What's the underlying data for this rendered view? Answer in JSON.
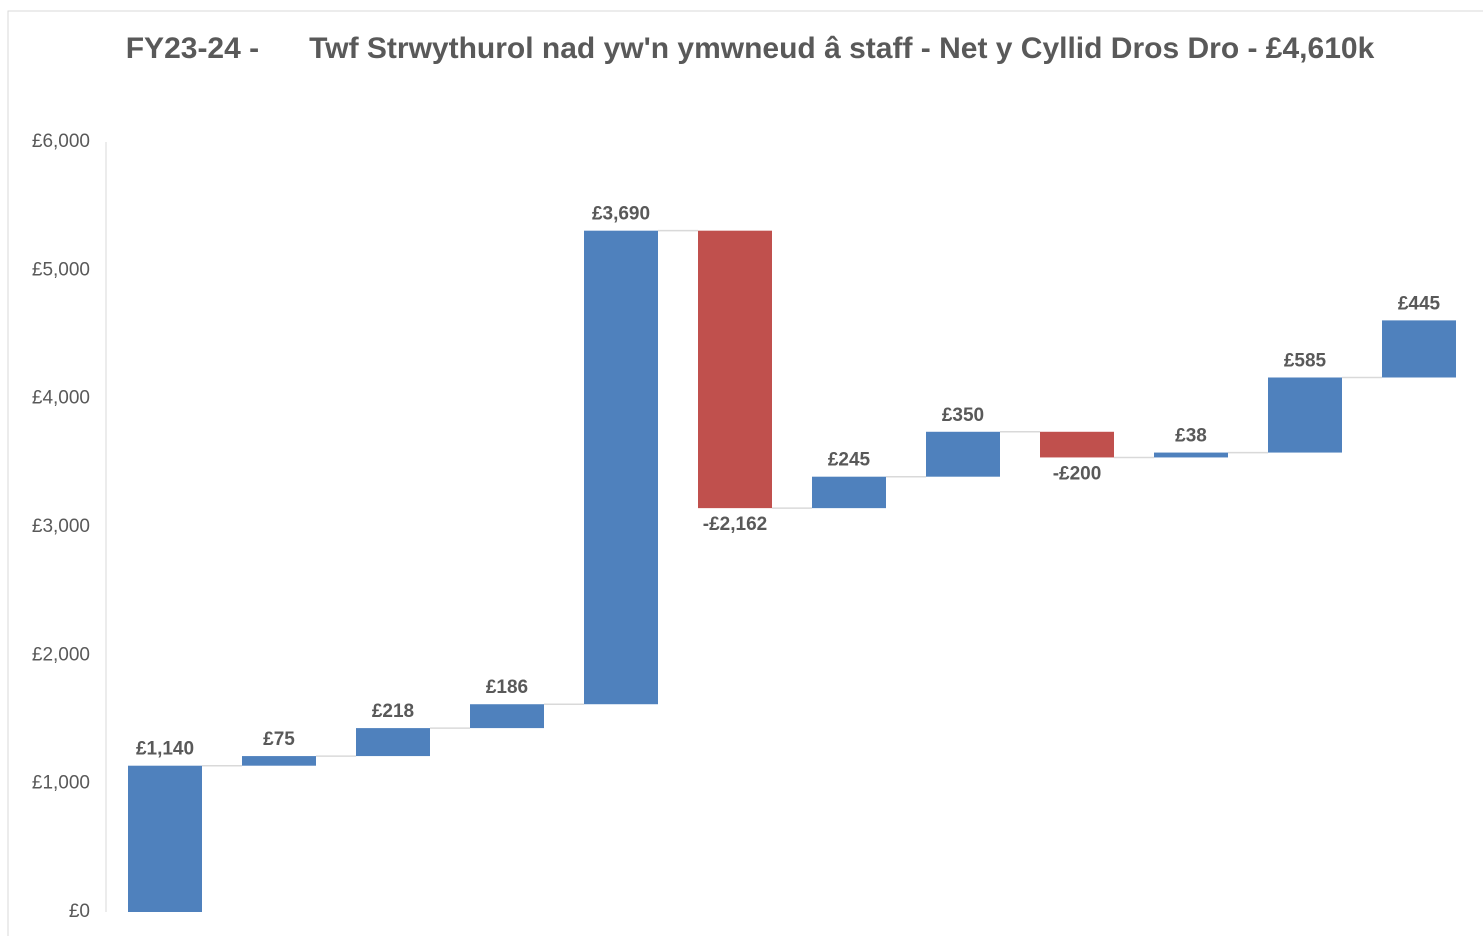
{
  "chart_data": {
    "type": "waterfall",
    "title": "FY23-24 -      Twf Strwythurol nad yw'n ymwneud â staff - Net y Cyllid Dros Dro - £4,610k",
    "values": [
      1140,
      75,
      218,
      186,
      3690,
      -2162,
      245,
      350,
      -200,
      38,
      585,
      445
    ],
    "value_labels": [
      "£1,140",
      "£75",
      "£218",
      "£186",
      "£3,690",
      "-£2,162",
      "£245",
      "£350",
      "-£200",
      "£38",
      "£585",
      "£445"
    ],
    "increase_color": "#4f81bd",
    "decrease_color": "#c0504d",
    "ylim": [
      0,
      6000
    ],
    "yticks": [
      {
        "value": 0,
        "label": "£0"
      },
      {
        "value": 1000,
        "label": "£1,000"
      },
      {
        "value": 2000,
        "label": "£2,000"
      },
      {
        "value": 3000,
        "label": "£3,000"
      },
      {
        "value": 4000,
        "label": "£4,000"
      },
      {
        "value": 5000,
        "label": "£5,000"
      },
      {
        "value": 6000,
        "label": "£6,000"
      }
    ],
    "grid": false
  }
}
